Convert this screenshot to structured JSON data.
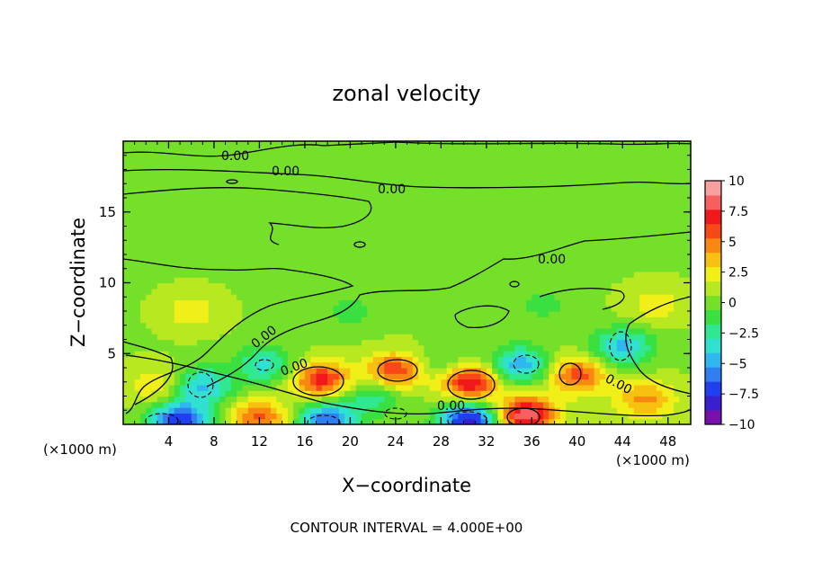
{
  "chart_data": {
    "type": "heatmap",
    "title": "zonal velocity",
    "xlabel": "X−coordinate",
    "ylabel": "Z−coordinate",
    "x_unit_left": "(×1000 m)",
    "x_unit_right": "(×1000 m)",
    "xlim": [
      0,
      50
    ],
    "ylim": [
      0,
      20
    ],
    "x_ticks": [
      4,
      8,
      12,
      16,
      20,
      24,
      28,
      32,
      36,
      40,
      44,
      48
    ],
    "y_ticks": [
      5,
      10,
      15
    ],
    "colorbar": {
      "vmin": -10,
      "vmax": 10,
      "ticks": [
        {
          "v": 10,
          "label": "10"
        },
        {
          "v": 7.5,
          "label": "7.5"
        },
        {
          "v": 5,
          "label": "5"
        },
        {
          "v": 2.5,
          "label": "2.5"
        },
        {
          "v": 0,
          "label": "0"
        },
        {
          "v": -2.5,
          "label": "−2.5"
        },
        {
          "v": -5,
          "label": "−5"
        },
        {
          "v": -7.5,
          "label": "−7.5"
        },
        {
          "v": -10,
          "label": "−10"
        }
      ],
      "colors": [
        "#7a0fb0",
        "#3a1fd0",
        "#1f3ff0",
        "#2f7ff0",
        "#2fb8f0",
        "#30e0d0",
        "#30e890",
        "#3ae040",
        "#74e02a",
        "#b8e820",
        "#f0f018",
        "#f8c010",
        "#f88810",
        "#f84818",
        "#f01818",
        "#f86060",
        "#f8a0a0"
      ]
    },
    "background_value": 0.5,
    "features": [
      {
        "x": 17.5,
        "z": 3.2,
        "v": 6.5
      },
      {
        "x": 24.0,
        "z": 3.8,
        "v": 6.0
      },
      {
        "x": 30.5,
        "z": 3.0,
        "v": 7.5
      },
      {
        "x": 35.5,
        "z": 0.7,
        "v": 8.5
      },
      {
        "x": 40.0,
        "z": 3.5,
        "v": 5.5
      },
      {
        "x": 12.0,
        "z": 0.5,
        "v": 5.0
      },
      {
        "x": 46.0,
        "z": 1.8,
        "v": 4.0
      },
      {
        "x": 3.0,
        "z": 2.8,
        "v": 2.5
      },
      {
        "x": 5.0,
        "z": 0.3,
        "v": -8.0
      },
      {
        "x": 18.0,
        "z": 0.3,
        "v": -7.0
      },
      {
        "x": 30.5,
        "z": 0.3,
        "v": -9.0
      },
      {
        "x": 7.0,
        "z": 2.7,
        "v": -5.0
      },
      {
        "x": 12.5,
        "z": 4.2,
        "v": -4.0
      },
      {
        "x": 35.0,
        "z": 4.2,
        "v": -5.5
      },
      {
        "x": 44.0,
        "z": 5.5,
        "v": -5.0
      },
      {
        "x": 22.0,
        "z": 2.0,
        "v": -3.0
      },
      {
        "x": 28.0,
        "z": 4.0,
        "v": -2.0
      },
      {
        "x": 20.0,
        "z": 8.0,
        "v": -1.5
      },
      {
        "x": 37.0,
        "z": 8.5,
        "v": -1.5
      },
      {
        "x": 6.0,
        "z": 8.0,
        "v": 2.0
      },
      {
        "x": 47.0,
        "z": 8.5,
        "v": 2.0
      },
      {
        "x": 25.0,
        "z": 14.5,
        "v": -1.0
      }
    ],
    "contour_labels": [
      "0.00",
      "0.00",
      "0.00",
      "0.00",
      "0.00",
      "0.00",
      "0.00",
      "0.00"
    ],
    "footer": "CONTOUR INTERVAL = 4.000E+00"
  }
}
